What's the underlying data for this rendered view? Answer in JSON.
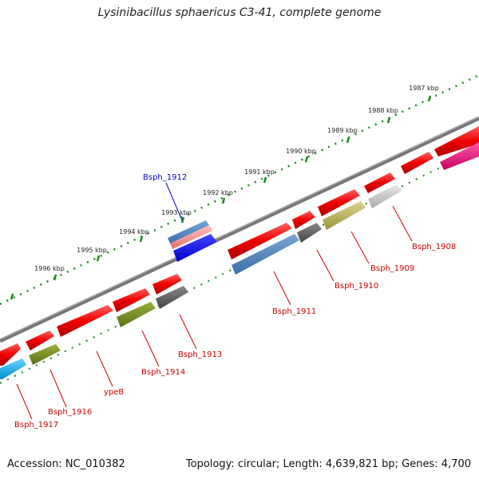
{
  "title": "Lysinibacillus sphaericus C3-41, complete genome",
  "footer": {
    "accession": "Accession: NC_010382",
    "topology": "Topology: circular; Length: 4,639,821 bp; Genes: 4,700"
  },
  "ruler_ticks": [
    "1987 kbp",
    "1988 kbp",
    "1989 kbp",
    "1990 kbp",
    "1991 kbp",
    "1992 kbp",
    "1993 kbp",
    "1994 kbp",
    "1995 kbp",
    "1996 kbp"
  ],
  "gene_labels": [
    {
      "text": "Bsph_1912",
      "color": "#0000cc"
    },
    {
      "text": "Bsph_1908",
      "color": "#cc0000"
    },
    {
      "text": "Bsph_1909",
      "color": "#cc0000"
    },
    {
      "text": "Bsph_1910",
      "color": "#cc0000"
    },
    {
      "text": "Bsph_1911",
      "color": "#cc0000"
    },
    {
      "text": "Bsph_1913",
      "color": "#cc0000"
    },
    {
      "text": "Bsph_1914",
      "color": "#cc0000"
    },
    {
      "text": "ypeB",
      "color": "#cc0000"
    },
    {
      "text": "Bsph_1916",
      "color": "#cc0000"
    },
    {
      "text": "Bsph_1917",
      "color": "#cc0000"
    }
  ],
  "colors": {
    "gene_red": "#ee0000",
    "backbone": "#888888",
    "ruler_green": "#1a8a1a"
  }
}
